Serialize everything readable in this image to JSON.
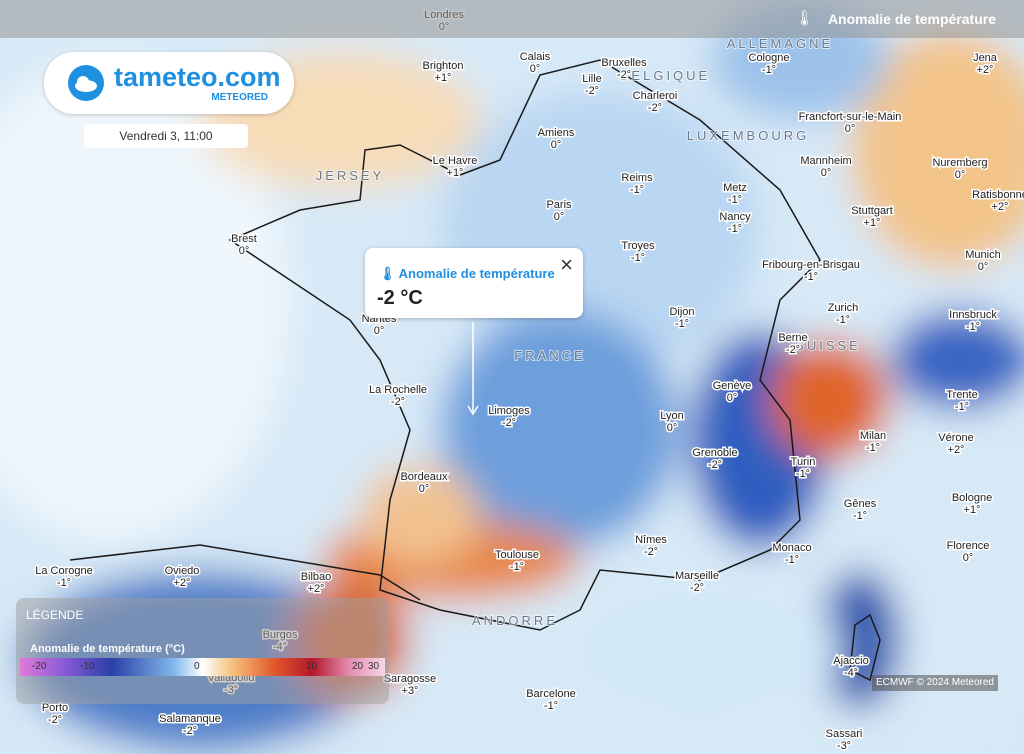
{
  "header": {
    "title": "Anomalie de température"
  },
  "logo": {
    "name": "tameteo.com",
    "brand": "METEORED",
    "date": "Vendredi 3, 11:00"
  },
  "popup": {
    "title": "Anomalie de température",
    "value": "-2 °C"
  },
  "countries": [
    "ALLEMAGNE",
    "BELGIQUE",
    "LUXEMBOURG",
    "FRANCE",
    "SUISSE",
    "ANDORRE",
    "JERSEY"
  ],
  "cities": [
    {
      "name": "Londres",
      "value": "0°"
    },
    {
      "name": "Brighton",
      "value": "+1°"
    },
    {
      "name": "Calais",
      "value": "0°"
    },
    {
      "name": "Bruxelles",
      "value": "-2°"
    },
    {
      "name": "Lille",
      "value": "-2°"
    },
    {
      "name": "Charleroi",
      "value": "-2°"
    },
    {
      "name": "Cologne",
      "value": "-1°"
    },
    {
      "name": "Jena",
      "value": "+2°"
    },
    {
      "name": "Amiens",
      "value": "0°"
    },
    {
      "name": "Francfort-sur-le-Main",
      "value": "0°"
    },
    {
      "name": "Le Havre",
      "value": "+1°"
    },
    {
      "name": "Reims",
      "value": "-1°"
    },
    {
      "name": "Metz",
      "value": "-1°"
    },
    {
      "name": "Mannheim",
      "value": "0°"
    },
    {
      "name": "Nuremberg",
      "value": "0°"
    },
    {
      "name": "Ratisbonne",
      "value": "+2°"
    },
    {
      "name": "Paris",
      "value": "0°"
    },
    {
      "name": "Nancy",
      "value": "-1°"
    },
    {
      "name": "Stuttgart",
      "value": "+1°"
    },
    {
      "name": "Brest",
      "value": "0°"
    },
    {
      "name": "Troyes",
      "value": "-1°"
    },
    {
      "name": "Fribourg-en-Brisgau",
      "value": "-1°"
    },
    {
      "name": "Munich",
      "value": "0°"
    },
    {
      "name": "Nantes",
      "value": "0°"
    },
    {
      "name": "Dijon",
      "value": "-1°"
    },
    {
      "name": "Zurich",
      "value": "-1°"
    },
    {
      "name": "Innsbruck",
      "value": "-1°"
    },
    {
      "name": "Berne",
      "value": "-2°"
    },
    {
      "name": "La Rochelle",
      "value": "-2°"
    },
    {
      "name": "Limoges",
      "value": "-2°"
    },
    {
      "name": "Genève",
      "value": "0°"
    },
    {
      "name": "Trente",
      "value": "-1°"
    },
    {
      "name": "Lyon",
      "value": "0°"
    },
    {
      "name": "Milan",
      "value": "-1°"
    },
    {
      "name": "Vérone",
      "value": "+2°"
    },
    {
      "name": "Grenoble",
      "value": "-2°"
    },
    {
      "name": "Turin",
      "value": "-1°"
    },
    {
      "name": "Bordeaux",
      "value": "0°"
    },
    {
      "name": "Gênes",
      "value": "-1°"
    },
    {
      "name": "Bologne",
      "value": "+1°"
    },
    {
      "name": "Nîmes",
      "value": "-2°"
    },
    {
      "name": "Monaco",
      "value": "-1°"
    },
    {
      "name": "Florence",
      "value": "0°"
    },
    {
      "name": "Toulouse",
      "value": "-1°"
    },
    {
      "name": "Marseille",
      "value": "-2°"
    },
    {
      "name": "La Corogne",
      "value": "-1°"
    },
    {
      "name": "Oviedo",
      "value": "+2°"
    },
    {
      "name": "Bilbao",
      "value": "+2°"
    },
    {
      "name": "Burgos",
      "value": "-4°"
    },
    {
      "name": "Ajaccio",
      "value": "-4°"
    },
    {
      "name": "Saragosse",
      "value": "+3°"
    },
    {
      "name": "Valladolid",
      "value": "-3°"
    },
    {
      "name": "Barcelone",
      "value": "-1°"
    },
    {
      "name": "Porto",
      "value": "-2°"
    },
    {
      "name": "Salamanque",
      "value": "-2°"
    },
    {
      "name": "Sassari",
      "value": "-3°"
    }
  ],
  "legend": {
    "title": "LÉGENDE",
    "subtitle": "Anomalie de température (°C)",
    "ticks": [
      -20,
      -10,
      0,
      10,
      20,
      30
    ]
  },
  "credit": "ECMWF © 2024 Meteored"
}
